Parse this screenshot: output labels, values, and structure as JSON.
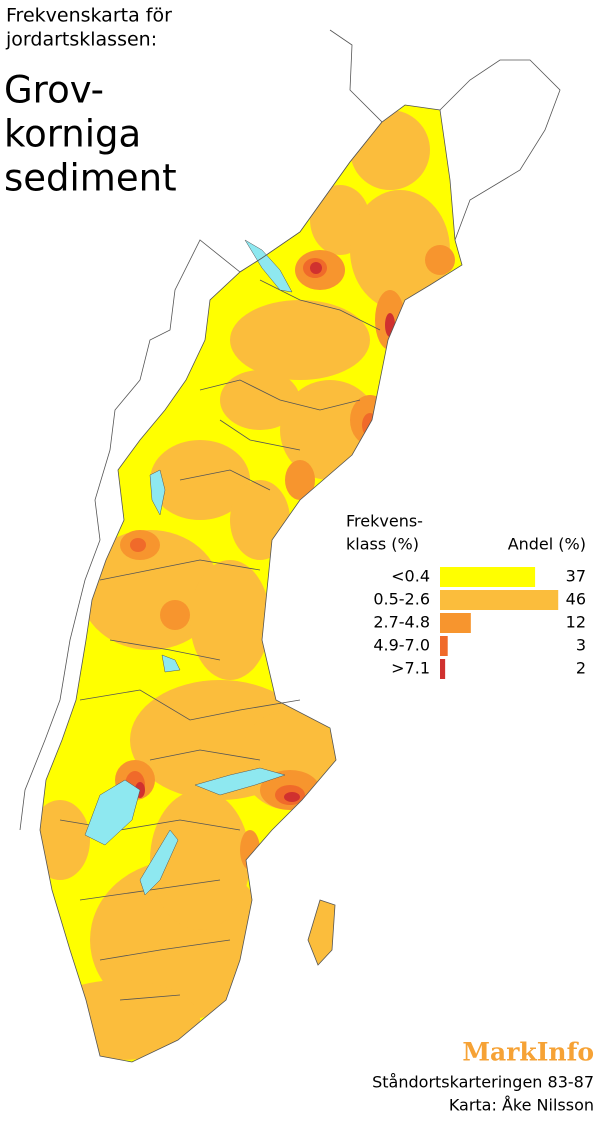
{
  "header": {
    "subtitle_lines": [
      "Frekvenskarta för",
      "jordartsklassen:"
    ],
    "title_lines": [
      "Grov-",
      "korniga",
      "sediment"
    ]
  },
  "legend": {
    "type": "bar",
    "class_header": [
      "Frekvens-",
      "klass (%)"
    ],
    "share_header": "Andel (%)",
    "classes": [
      {
        "label": "<0.4",
        "color": "#ffff00",
        "value": 37
      },
      {
        "label": "0.5-2.6",
        "color": "#fbbd3c",
        "value": 46
      },
      {
        "label": "2.7-4.8",
        "color": "#f7952e",
        "value": 12
      },
      {
        "label": "4.9-7.0",
        "color": "#f06a2a",
        "value": 3
      },
      {
        "label": ">7.1",
        "color": "#d0312f",
        "value": 2
      }
    ]
  },
  "footer": {
    "brand": "MarkInfo",
    "source": "Ståndortskarteringen 83-87",
    "credit": "Karta: Åke Nilsson"
  }
}
